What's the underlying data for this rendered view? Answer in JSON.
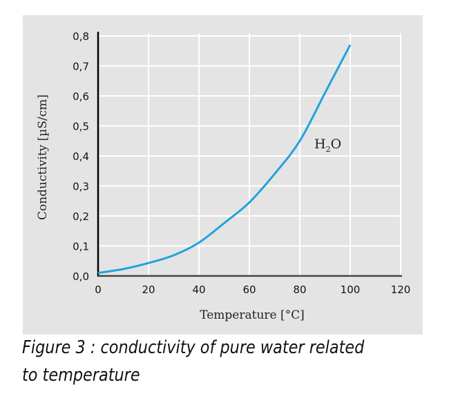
{
  "chart_data": {
    "type": "line",
    "title": "",
    "xlabel": "Temperature [°C]",
    "ylabel": "Conductivity [µS/cm]",
    "xlim": [
      0,
      120
    ],
    "ylim": [
      0,
      0.8
    ],
    "x_ticks": [
      "0",
      "20",
      "40",
      "60",
      "80",
      "100",
      "120"
    ],
    "y_ticks": [
      "0,0",
      "0,1",
      "0,2",
      "0,3",
      "0,4",
      "0,5",
      "0,6",
      "0,7",
      "0,8"
    ],
    "grid": true,
    "series": [
      {
        "name": "H2O",
        "label_main": "H",
        "label_sub": "2",
        "label_end": "O",
        "color": "#1fa3dc",
        "x": [
          0,
          10,
          20,
          30,
          40,
          50,
          60,
          70,
          80,
          90,
          100
        ],
        "y": [
          0.01,
          0.023,
          0.043,
          0.069,
          0.111,
          0.176,
          0.245,
          0.34,
          0.45,
          0.61,
          0.77
        ]
      }
    ]
  },
  "caption": "Figure 3 : conductivity of pure water related to temperature"
}
